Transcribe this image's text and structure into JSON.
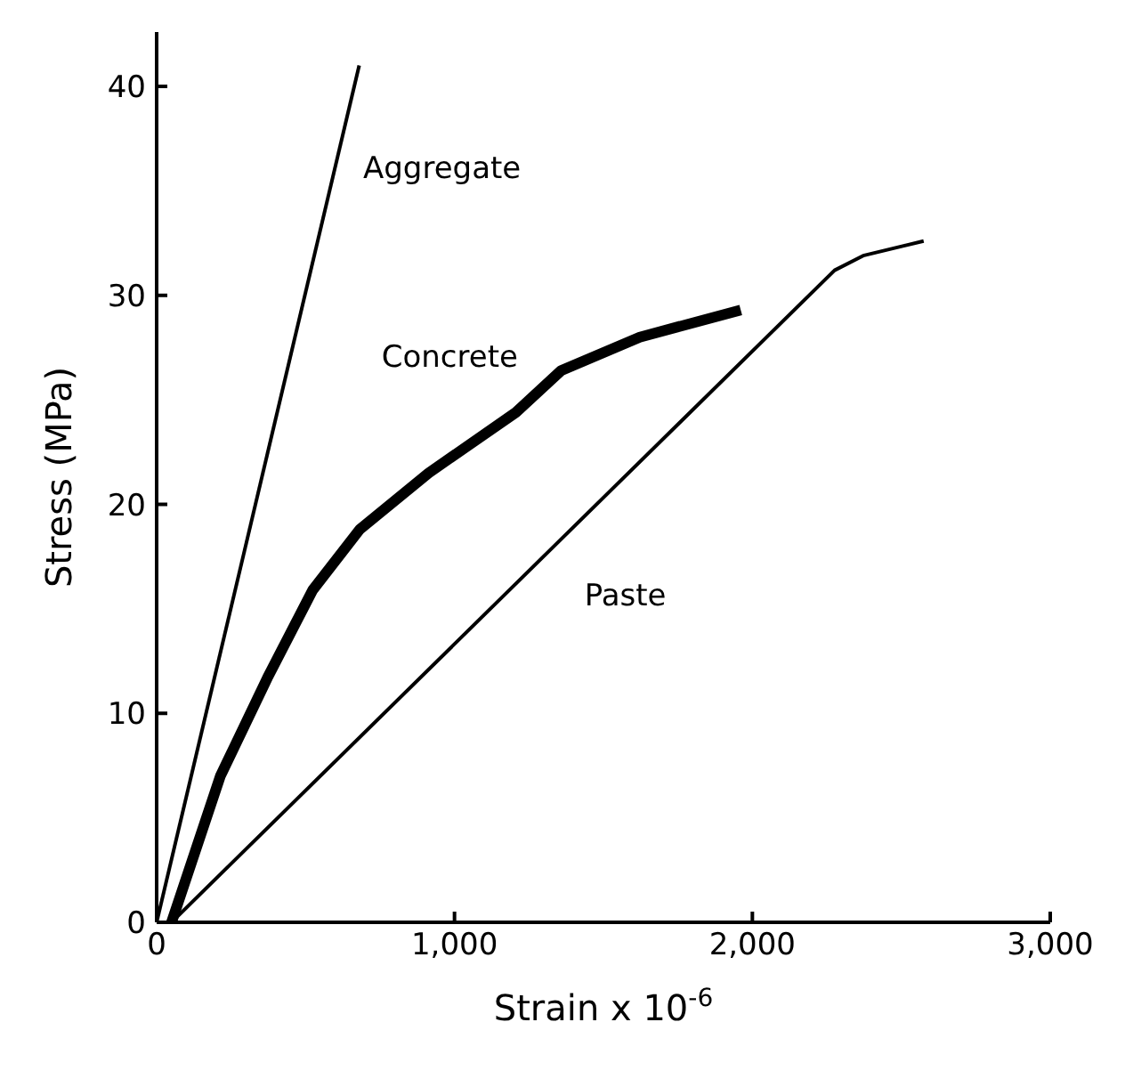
{
  "chart_data": {
    "type": "line",
    "xlabel": "Strain x 10$^{-6}$",
    "ylabel": "Stress (MPa)",
    "xlim": [
      0,
      3000
    ],
    "xticks": [
      0,
      {
        "value": 1000,
        "label": "1,000"
      },
      {
        "value": 2000,
        "label": "2,000"
      },
      {
        "value": 3000,
        "label": "3,000"
      }
    ],
    "ylim": [
      0,
      42.6
    ],
    "yticks": [
      0,
      10,
      20,
      30,
      40
    ],
    "grid": false,
    "legend": false,
    "marker": "none",
    "line_style": "solid",
    "series": [
      {
        "name": "Aggregate",
        "color": "#000000",
        "x": [
          0,
          680
        ],
        "values": [
          0,
          41
        ]
      },
      {
        "name": "Concrete",
        "color": "#000000",
        "x": [
          50,
          214,
          372,
          524,
          682,
          913,
          1206,
          1358,
          1622,
          1961
        ],
        "values": [
          0,
          7.0,
          11.7,
          15.9,
          18.8,
          21.5,
          24.4,
          26.4,
          28.0,
          29.3
        ]
      },
      {
        "name": "Paste",
        "color": "#000000",
        "x": [
          50,
          2276,
          2372,
          2575
        ],
        "values": [
          0,
          31.2,
          31.9,
          32.6
        ]
      }
    ]
  }
}
